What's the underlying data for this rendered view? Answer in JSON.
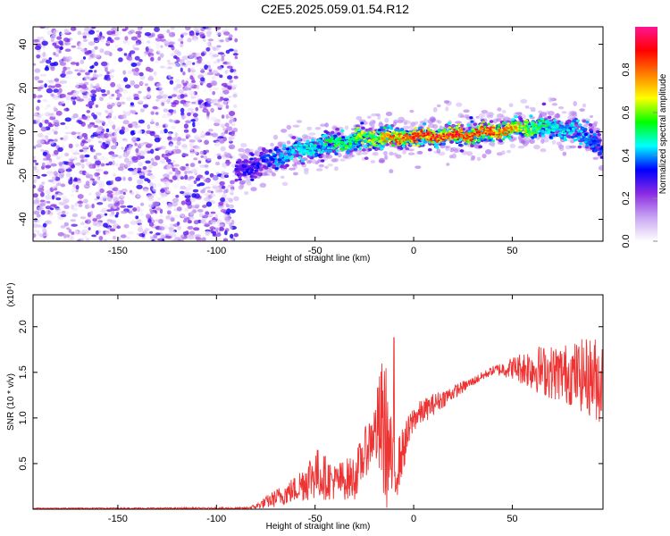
{
  "title": "C2E5.2025.059.01.54.R12",
  "chart_data": [
    {
      "type": "heatmap",
      "description_of_marks": "spectrogram of normalized spectral amplitude",
      "xlabel": "Height of straight line (km)",
      "ylabel": "Frequency (Hz)",
      "xlim": [
        -193,
        96
      ],
      "ylim": [
        -50,
        48
      ],
      "xticks": [
        -150,
        -100,
        -50,
        0,
        50
      ],
      "yticks": [
        -40,
        -20,
        0,
        20,
        40
      ],
      "colorbar": {
        "label": "Normalized spectral amplitude",
        "range": [
          0.0,
          1.0
        ],
        "ticks": [
          0.0,
          0.2,
          0.4,
          0.6,
          0.8
        ],
        "tick_labels": [
          "0.0",
          "0.2",
          "0.4",
          "0.6",
          "0.8"
        ],
        "colormap": [
          "#ffffff",
          "#c9a6f2",
          "#8a2be2",
          "#0000ff",
          "#00ffff",
          "#00ff00",
          "#ffff00",
          "#ff8000",
          "#ff0000",
          "#ff1493"
        ]
      },
      "noise_region_x": [
        -193,
        -90
      ],
      "ridge": {
        "x": [
          -90,
          -80,
          -70,
          -60,
          -50,
          -40,
          -30,
          -20,
          -10,
          0,
          10,
          20,
          30,
          40,
          50,
          60,
          70,
          80,
          90,
          96
        ],
        "y": [
          -18,
          -15,
          -12,
          -9,
          -7,
          -5,
          -4,
          -3,
          -3,
          -2,
          -2,
          -2,
          -1,
          0,
          1,
          2,
          2,
          1,
          -3,
          -8
        ],
        "amplitude": [
          0.3,
          0.35,
          0.4,
          0.45,
          0.5,
          0.55,
          0.6,
          0.7,
          0.85,
          0.9,
          0.95,
          0.95,
          0.9,
          0.85,
          0.8,
          0.6,
          0.5,
          0.45,
          0.4,
          0.35
        ]
      }
    },
    {
      "type": "line",
      "xlabel": "Height of straight line (km)",
      "ylabel": "SNR (10 * v/v)",
      "yscale_note": "(x10⁴)",
      "xlim": [
        -193,
        96
      ],
      "ylim": [
        0,
        2.35
      ],
      "xticks": [
        -150,
        -100,
        -50,
        0,
        50
      ],
      "yticks": [
        0.5,
        1.0,
        1.5,
        2.0
      ],
      "ytick_labels": [
        "0.5",
        "1.0",
        "1.5",
        "2.0"
      ],
      "series": [
        {
          "color": "#ee3333",
          "envelope_x": [
            -193,
            -85,
            -80,
            -70,
            -60,
            -50,
            -40,
            -30,
            -20,
            -15,
            -10,
            0,
            10,
            20,
            30,
            40,
            50,
            60,
            70,
            80,
            90,
            96
          ],
          "envelope_mean": [
            0.01,
            0.01,
            0.03,
            0.12,
            0.22,
            0.4,
            0.3,
            0.35,
            0.85,
            0.9,
            0.35,
            1.0,
            1.15,
            1.28,
            1.4,
            1.52,
            1.55,
            1.55,
            1.5,
            1.48,
            1.45,
            1.4
          ],
          "envelope_spread": [
            0.005,
            0.01,
            0.03,
            0.1,
            0.15,
            0.3,
            0.2,
            0.25,
            0.3,
            0.9,
            0.35,
            0.15,
            0.12,
            0.08,
            0.05,
            0.05,
            0.12,
            0.25,
            0.3,
            0.35,
            0.45,
            0.5
          ],
          "notable_spike": {
            "x": -10,
            "y": 1.88
          }
        }
      ]
    }
  ]
}
